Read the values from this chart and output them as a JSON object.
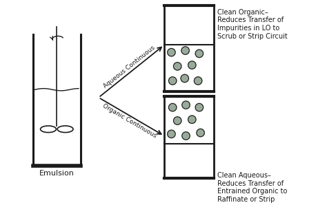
{
  "bg_color": "#ffffff",
  "fig_bg": "#ffffff",
  "tank_color": "#1a1a1a",
  "gray_fill": "#9aaa9a",
  "white_fill": "#ffffff",
  "emulsion_label": "Emulsion",
  "aqueous_label": "Aqueous Continuous",
  "organic_label": "Organic Continuous",
  "top_right_label": "Clean Organic–\nReduces Transfer of\nImpurities in LO to\nScrub or Strip Circuit",
  "bottom_right_label": "Clean Aqueous–\nReduces Transfer of\nEntrained Organic to\nRaffinate or Strip",
  "font_size": 7.0,
  "arrow_font_size": 6.5
}
